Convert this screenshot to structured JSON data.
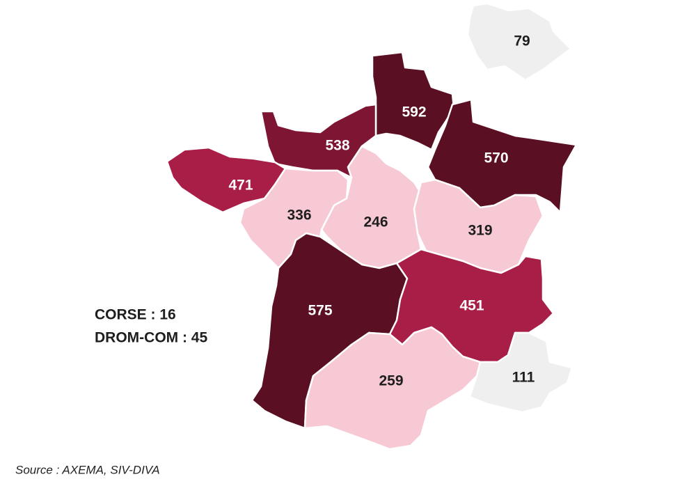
{
  "regions": [
    {
      "value": 79,
      "color": "#efefef"
    },
    {
      "value": 592,
      "color": "#5a1022"
    },
    {
      "value": 570,
      "color": "#5a1022"
    },
    {
      "value": 538,
      "color": "#7d1533"
    },
    {
      "value": 471,
      "color": "#a91e47"
    },
    {
      "value": 336,
      "color": "#f6c9d4"
    },
    {
      "value": 246,
      "color": "#f6c9d4"
    },
    {
      "value": 319,
      "color": "#f6c9d4"
    },
    {
      "value": 575,
      "color": "#5a1022"
    },
    {
      "value": 451,
      "color": "#a91e47"
    },
    {
      "value": 259,
      "color": "#f6c9d4"
    },
    {
      "value": 111,
      "color": "#efefef"
    }
  ],
  "notes": [
    "CORSE : 16",
    "DROM-COM : 45"
  ],
  "source": "Source : AXEMA, SIV-DIVA"
}
